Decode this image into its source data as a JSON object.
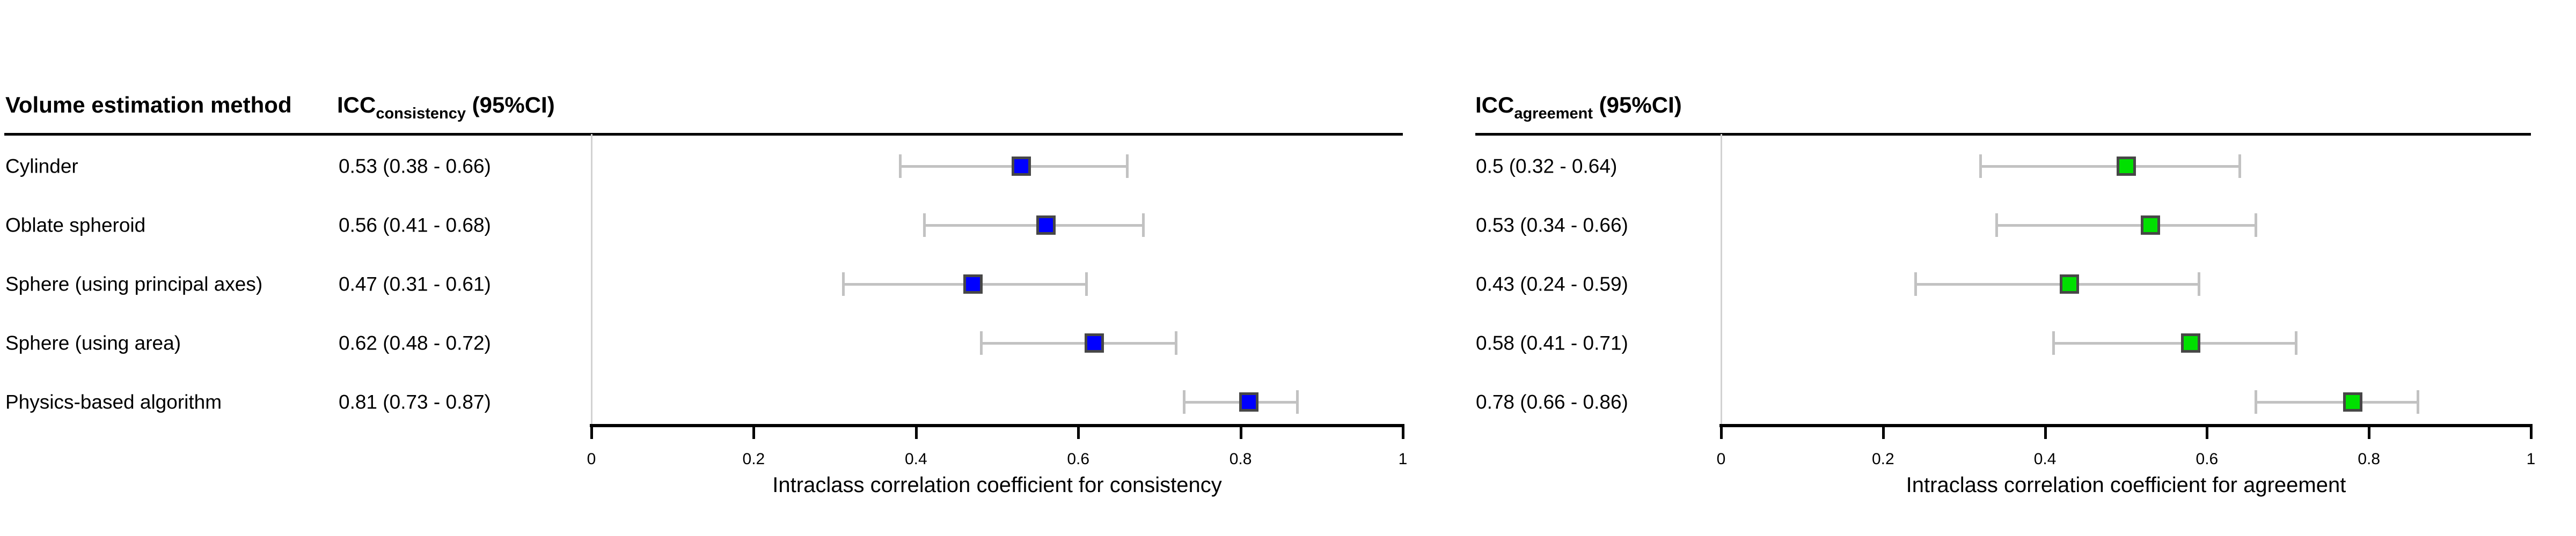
{
  "chart_data": [
    {
      "type": "forest",
      "panel_id": "consistency",
      "column_header": "Volume estimation method",
      "icc_header": {
        "prefix": "ICC",
        "subscript": "consistency",
        "suffix": " (95%CI)"
      },
      "categories": [
        "Cylinder",
        "Oblate spheroid",
        "Sphere (using principal axes)",
        "Sphere (using area)",
        "Physics-based algorithm"
      ],
      "estimates": [
        0.53,
        0.56,
        0.47,
        0.62,
        0.81
      ],
      "ci_low": [
        0.38,
        0.41,
        0.31,
        0.48,
        0.73
      ],
      "ci_high": [
        0.66,
        0.68,
        0.61,
        0.72,
        0.87
      ],
      "value_labels": [
        "0.53 (0.38 - 0.66)",
        "0.56 (0.41 - 0.68)",
        "0.47 (0.31 - 0.61)",
        "0.62 (0.48 - 0.72)",
        "0.81 (0.73 - 0.87)"
      ],
      "xlabel": "Intraclass correlation coefficient for consistency",
      "xlim": [
        0,
        1
      ],
      "xticks": [
        0,
        0.2,
        0.4,
        0.6,
        0.8,
        1
      ],
      "xtick_labels": [
        "0",
        "0.2",
        "0.4",
        "0.6",
        "0.8",
        "1"
      ],
      "show_category_labels": true,
      "marker_color": "#0000FF",
      "legend": "none",
      "grid": "zero-line-only"
    },
    {
      "type": "forest",
      "panel_id": "agreement",
      "icc_header": {
        "prefix": "ICC",
        "subscript": "agreement",
        "suffix": " (95%CI)"
      },
      "categories": [
        "Cylinder",
        "Oblate spheroid",
        "Sphere (using principal axes)",
        "Sphere (using area)",
        "Physics-based algorithm"
      ],
      "estimates": [
        0.5,
        0.53,
        0.43,
        0.58,
        0.78
      ],
      "ci_low": [
        0.32,
        0.34,
        0.24,
        0.41,
        0.66
      ],
      "ci_high": [
        0.64,
        0.66,
        0.59,
        0.71,
        0.86
      ],
      "value_labels": [
        "0.5 (0.32 - 0.64)",
        "0.53 (0.34 - 0.66)",
        "0.43 (0.24 - 0.59)",
        "0.58 (0.41 - 0.71)",
        "0.78 (0.66 - 0.86)"
      ],
      "xlabel": "Intraclass correlation coefficient for agreement",
      "xlim": [
        0,
        1
      ],
      "xticks": [
        0,
        0.2,
        0.4,
        0.6,
        0.8,
        1
      ],
      "xtick_labels": [
        "0",
        "0.2",
        "0.4",
        "0.6",
        "0.8",
        "1"
      ],
      "show_category_labels": false,
      "marker_color": "#00E000",
      "legend": "none",
      "grid": "zero-line-only"
    }
  ],
  "style": {
    "marker_border_color": "#474747",
    "whisker_color": "#C2C2C2",
    "zero_line_color": "#D2D2D2",
    "axis_color": "#000000",
    "text_color": "#000000",
    "background_color": "#FFFFFF"
  }
}
